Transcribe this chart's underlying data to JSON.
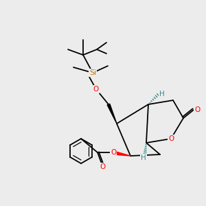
{
  "background_color": "#ececec",
  "fig_size": [
    3.0,
    3.0
  ],
  "dpi": 100,
  "bond_color": "#000000",
  "bond_width": 1.3,
  "atom_colors": {
    "O": "#ff0000",
    "Si": "#c87800",
    "H": "#3a8a8a",
    "C": "#000000"
  },
  "font_size_atom": 7.5,
  "font_size_Si": 8.0
}
